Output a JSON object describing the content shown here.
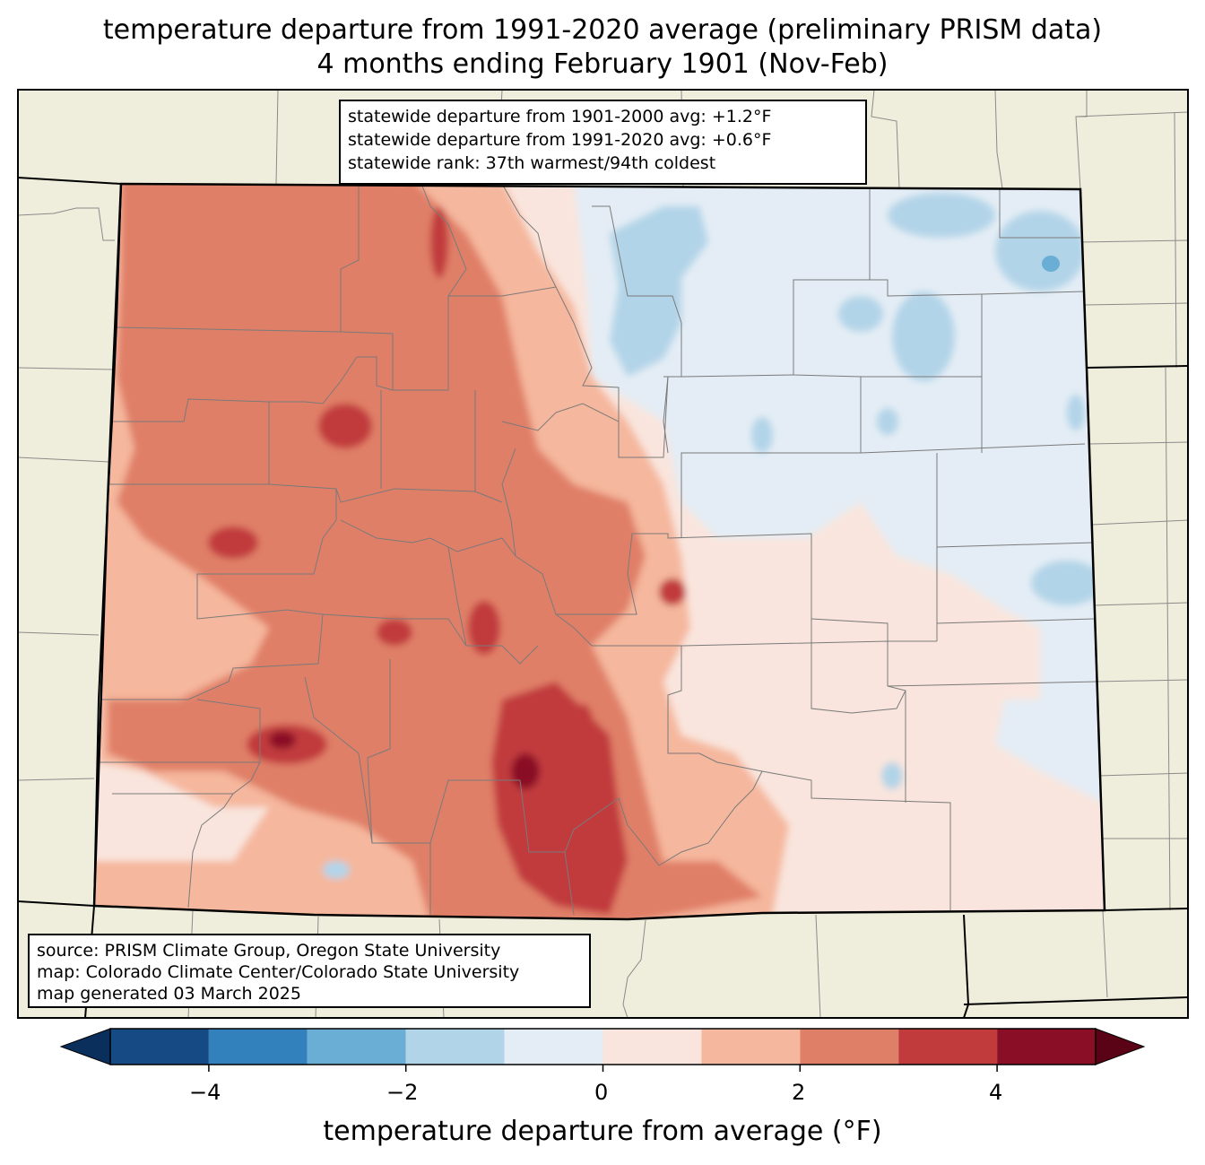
{
  "title": {
    "line1": "temperature departure from 1991-2020 average (preliminary PRISM data)",
    "line2": "4 months ending February 1901 (Nov-Feb)"
  },
  "stats": {
    "line1": "statewide departure from 1901-2000 avg: +1.2°F",
    "line2": "statewide departure from 1991-2020 avg: +0.6°F",
    "line3": "statewide rank: 37th warmest/94th coldest"
  },
  "source": {
    "line1": "source: PRISM Climate Group, Oregon State University",
    "line2": "map: Colorado Climate Center/Colorado State University",
    "line3": "map generated 03 March 2025"
  },
  "colorbar": {
    "title": "temperature departure from average (°F)",
    "ticks": [
      "−4",
      "−2",
      "0",
      "2",
      "4"
    ],
    "levels": [
      -5,
      -4,
      -3,
      -2,
      -1,
      0,
      1,
      2,
      3,
      4,
      5
    ],
    "colors": [
      "#164a85",
      "#3281bc",
      "#6baed5",
      "#b2d4e8",
      "#e4edf5",
      "#f9e5dd",
      "#f5b79d",
      "#e07f68",
      "#c13b3c",
      "#8a0e26"
    ],
    "under_color": "#0a2f5c",
    "over_color": "#5a0216"
  },
  "map": {
    "land_color": "#efeedc",
    "state_fill": "#e4edf5"
  }
}
